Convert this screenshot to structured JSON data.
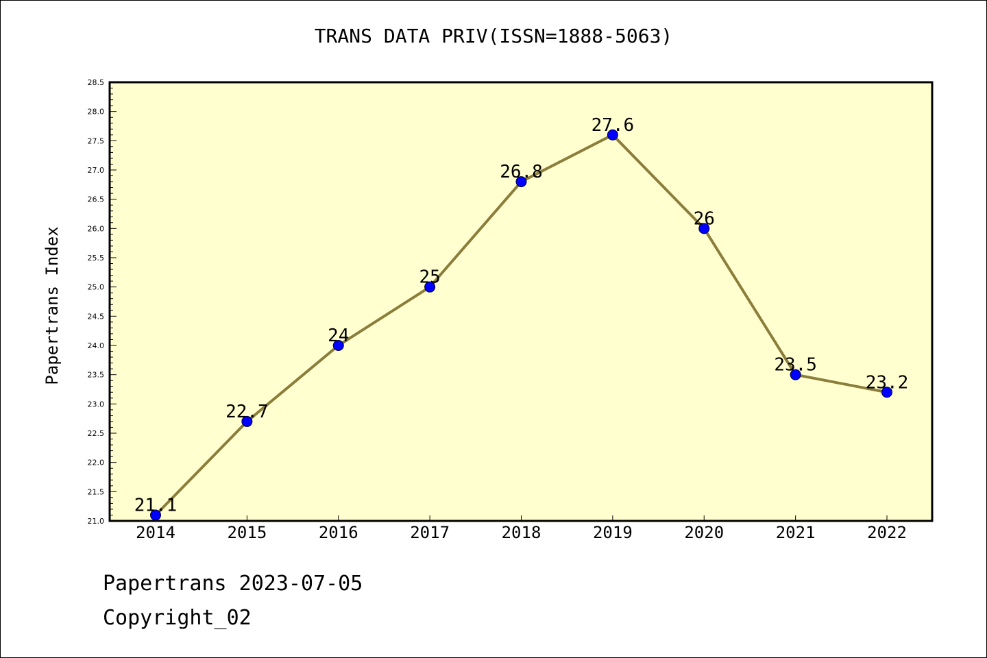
{
  "chart_data": {
    "type": "line",
    "title": "TRANS DATA PRIV(ISSN=1888-5063)",
    "xlabel": "",
    "ylabel": "Papertrans Index",
    "categories": [
      "2014",
      "2015",
      "2016",
      "2017",
      "2018",
      "2019",
      "2020",
      "2021",
      "2022"
    ],
    "values": [
      21.1,
      22.7,
      24,
      25,
      26.8,
      27.6,
      26,
      23.5,
      23.2
    ],
    "data_labels": [
      "21.1",
      "22.7",
      "24",
      "25",
      "26.8",
      "27.6",
      "26",
      "23.5",
      "23.2"
    ],
    "ylim": [
      21.0,
      28.5
    ],
    "yticks": [
      "21.0",
      "21.5",
      "22.0",
      "22.5",
      "23.0",
      "23.5",
      "24.0",
      "24.5",
      "25.0",
      "25.5",
      "26.0",
      "26.5",
      "27.0",
      "27.5",
      "28.0",
      "28.5"
    ],
    "grid": false,
    "legend": "none",
    "colors": {
      "plot_background": "#ffffd0",
      "line": "#8b7d3a",
      "marker": "#0000ff"
    }
  },
  "footer": {
    "line1": "Papertrans 2023-07-05",
    "line2": "Copyright_02"
  }
}
